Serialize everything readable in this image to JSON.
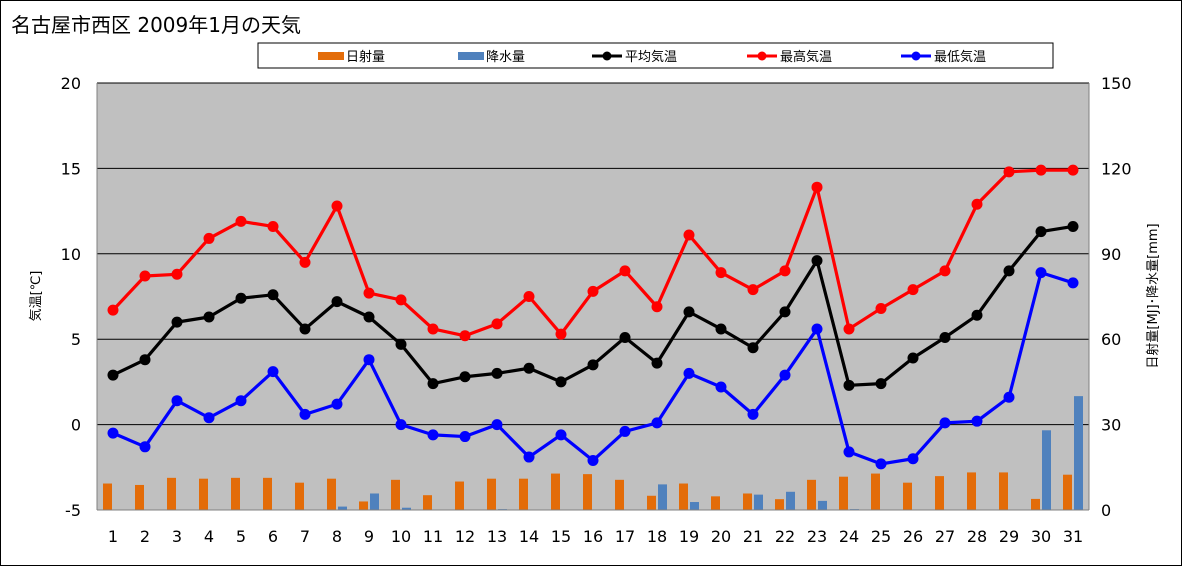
{
  "chart_data": {
    "type": "bar+line",
    "title": "名古屋市西区 2009年1月の天気",
    "ylabel_left": "気温[℃]",
    "ylabel_right": "日射量[MJ]･降水量[mm]",
    "ylim_left": [
      -5,
      20
    ],
    "ylim_right": [
      0,
      150
    ],
    "yticks_left": [
      -5,
      0,
      5,
      10,
      15,
      20
    ],
    "yticks_right": [
      0,
      30,
      60,
      90,
      120,
      150
    ],
    "grid": true,
    "legend_position": "top",
    "categories": [
      "1",
      "2",
      "3",
      "4",
      "5",
      "6",
      "7",
      "8",
      "9",
      "10",
      "11",
      "12",
      "13",
      "14",
      "15",
      "16",
      "17",
      "18",
      "19",
      "20",
      "21",
      "22",
      "23",
      "24",
      "25",
      "26",
      "27",
      "28",
      "29",
      "30",
      "31"
    ],
    "bar_series": [
      {
        "name": "日射量",
        "color": "#E36C09",
        "values": [
          9.3,
          8.8,
          11.3,
          11.0,
          11.3,
          11.3,
          9.6,
          11.0,
          3.0,
          10.6,
          5.2,
          10.0,
          11.0,
          11.0,
          12.8,
          12.6,
          10.6,
          5.0,
          9.3,
          4.8,
          5.8,
          3.8,
          10.6,
          11.7,
          12.8,
          9.6,
          11.9,
          13.2,
          13.2,
          3.9,
          12.4
        ]
      },
      {
        "name": "降水量",
        "color": "#4F81BD",
        "values": [
          0,
          0,
          0,
          0,
          0,
          0,
          0,
          1.2,
          5.8,
          0.8,
          0,
          0,
          0.3,
          0,
          0,
          0,
          0,
          9.0,
          2.8,
          0,
          5.4,
          6.4,
          3.2,
          0.3,
          0,
          0,
          0,
          0,
          0,
          28.0,
          40.0
        ]
      }
    ],
    "line_series": [
      {
        "name": "平均気温",
        "color": "#000000",
        "values": [
          2.9,
          3.8,
          6.0,
          6.3,
          7.4,
          7.6,
          5.6,
          7.2,
          6.3,
          4.7,
          2.4,
          2.8,
          3.0,
          3.3,
          2.5,
          3.5,
          5.1,
          3.6,
          6.6,
          5.6,
          4.5,
          6.6,
          9.6,
          2.3,
          2.4,
          3.9,
          5.1,
          6.4,
          9.0,
          11.3,
          11.6
        ]
      },
      {
        "name": "最高気温",
        "color": "#FF0000",
        "values": [
          6.7,
          8.7,
          8.8,
          10.9,
          11.9,
          11.6,
          9.5,
          12.8,
          7.7,
          7.3,
          5.6,
          5.2,
          5.9,
          7.5,
          5.3,
          7.8,
          9.0,
          6.9,
          11.1,
          8.9,
          7.9,
          9.0,
          13.9,
          5.6,
          6.8,
          7.9,
          9.0,
          12.9,
          14.8,
          14.9,
          14.9
        ]
      },
      {
        "name": "最低気温",
        "color": "#0000FF",
        "values": [
          -0.5,
          -1.3,
          1.4,
          0.4,
          1.4,
          3.1,
          0.6,
          1.2,
          3.8,
          0.0,
          -0.6,
          -0.7,
          0.0,
          -1.9,
          -0.6,
          -2.1,
          -0.4,
          0.1,
          3.0,
          2.2,
          0.6,
          2.9,
          5.6,
          -1.6,
          -2.3,
          -2.0,
          0.1,
          0.2,
          1.6,
          8.9,
          8.3
        ]
      }
    ]
  }
}
